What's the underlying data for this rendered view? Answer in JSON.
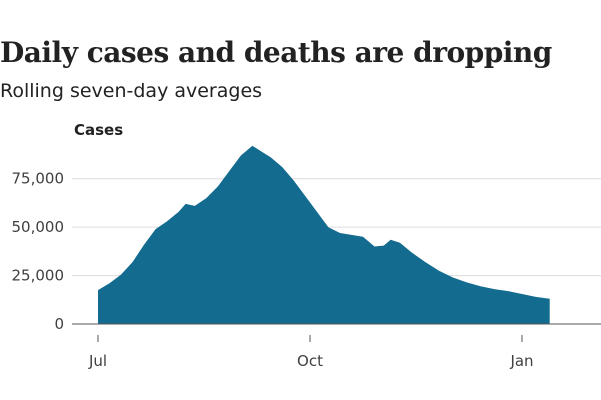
{
  "chart_data": {
    "type": "area",
    "title": "Daily cases and deaths are dropping",
    "subtitle": "Rolling seven-day averages",
    "panel_label": "Cases",
    "xlabel": "",
    "ylabel": "",
    "grid": true,
    "ylim": [
      0,
      95000
    ],
    "y_ticks": [
      0,
      25000,
      50000,
      75000
    ],
    "y_tick_labels": [
      "0",
      "25,000",
      "50,000",
      "75,000"
    ],
    "x_ticks": [
      {
        "label": "Jul",
        "day": 0
      },
      {
        "label": "Oct",
        "day": 92
      },
      {
        "label": "Jan",
        "day": 184
      }
    ],
    "xlim": [
      -7,
      200
    ],
    "color": "#136b8f",
    "series": [
      {
        "points": [
          [
            0,
            17500
          ],
          [
            5,
            21000
          ],
          [
            10,
            25500
          ],
          [
            15,
            32000
          ],
          [
            20,
            41000
          ],
          [
            25,
            49000
          ],
          [
            30,
            53000
          ],
          [
            35,
            58000
          ],
          [
            38,
            62000
          ],
          [
            42,
            61000
          ],
          [
            47,
            65000
          ],
          [
            52,
            71000
          ],
          [
            57,
            79000
          ],
          [
            62,
            87000
          ],
          [
            67,
            92000
          ],
          [
            71,
            89000
          ],
          [
            75,
            86000
          ],
          [
            80,
            81000
          ],
          [
            85,
            74000
          ],
          [
            90,
            66000
          ],
          [
            95,
            58000
          ],
          [
            100,
            50000
          ],
          [
            105,
            47000
          ],
          [
            110,
            46000
          ],
          [
            115,
            45000
          ],
          [
            120,
            40000
          ],
          [
            124,
            40500
          ],
          [
            127,
            43500
          ],
          [
            131,
            42000
          ],
          [
            136,
            37000
          ],
          [
            142,
            32000
          ],
          [
            148,
            27500
          ],
          [
            154,
            24000
          ],
          [
            160,
            21500
          ],
          [
            166,
            19500
          ],
          [
            172,
            18000
          ],
          [
            178,
            17000
          ],
          [
            184,
            15500
          ],
          [
            190,
            14000
          ],
          [
            196,
            13000
          ]
        ]
      }
    ]
  }
}
